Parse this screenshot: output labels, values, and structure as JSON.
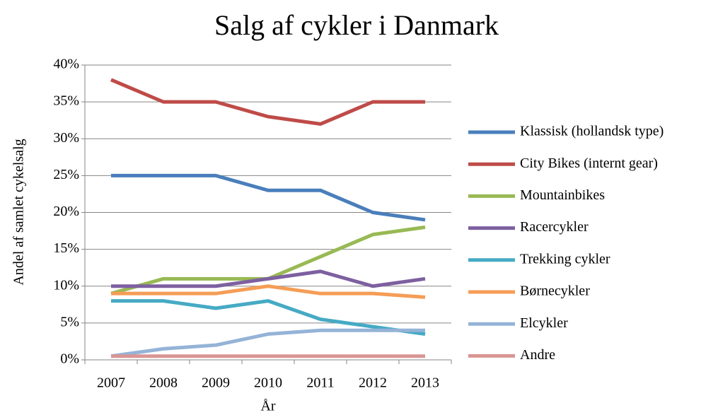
{
  "chart_data": {
    "type": "line",
    "title": "Salg af cykler i Danmark",
    "x_label": "År",
    "y_label": "Andel af samlet cykelsalg",
    "categories": [
      "2007",
      "2008",
      "2009",
      "2010",
      "2011",
      "2012",
      "2013"
    ],
    "series": [
      {
        "name": "Klassisk (hollandsk type)",
        "color": "#4a7ebb",
        "values": [
          25,
          25,
          25,
          23,
          23,
          20,
          19
        ]
      },
      {
        "name": "City Bikes (internt gear)",
        "color": "#be4b48",
        "values": [
          38,
          35,
          35,
          33,
          32,
          35,
          35
        ]
      },
      {
        "name": "Mountainbikes",
        "color": "#98b954",
        "values": [
          9,
          11,
          11,
          11,
          14,
          17,
          18
        ]
      },
      {
        "name": "Racercykler",
        "color": "#7d60a0",
        "values": [
          10,
          10,
          10,
          11,
          12,
          10,
          11
        ]
      },
      {
        "name": "Trekking cykler",
        "color": "#46aac5",
        "values": [
          8,
          8,
          7,
          8,
          5.5,
          4.5,
          3.5
        ]
      },
      {
        "name": "Børnecykler",
        "color": "#f59d56",
        "values": [
          9,
          9,
          9,
          10,
          9,
          9,
          8.5
        ]
      },
      {
        "name": "Elcykler",
        "color": "#95b3d7",
        "values": [
          0.5,
          1.5,
          2,
          3.5,
          4,
          4,
          4
        ]
      },
      {
        "name": "Andre",
        "color": "#d99694",
        "values": [
          0.5,
          0.5,
          0.5,
          0.5,
          0.5,
          0.5,
          0.5
        ]
      }
    ],
    "ylim": [
      0,
      40
    ],
    "yticks": [
      {
        "value": 0,
        "label": "0%"
      },
      {
        "value": 5,
        "label": "5%"
      },
      {
        "value": 10,
        "label": "10%"
      },
      {
        "value": 15,
        "label": "15%"
      },
      {
        "value": 20,
        "label": "20%"
      },
      {
        "value": 25,
        "label": "25%"
      },
      {
        "value": 30,
        "label": "30%"
      },
      {
        "value": 35,
        "label": "35%"
      },
      {
        "value": 40,
        "label": "40%"
      }
    ],
    "grid": true,
    "legend": "right"
  }
}
